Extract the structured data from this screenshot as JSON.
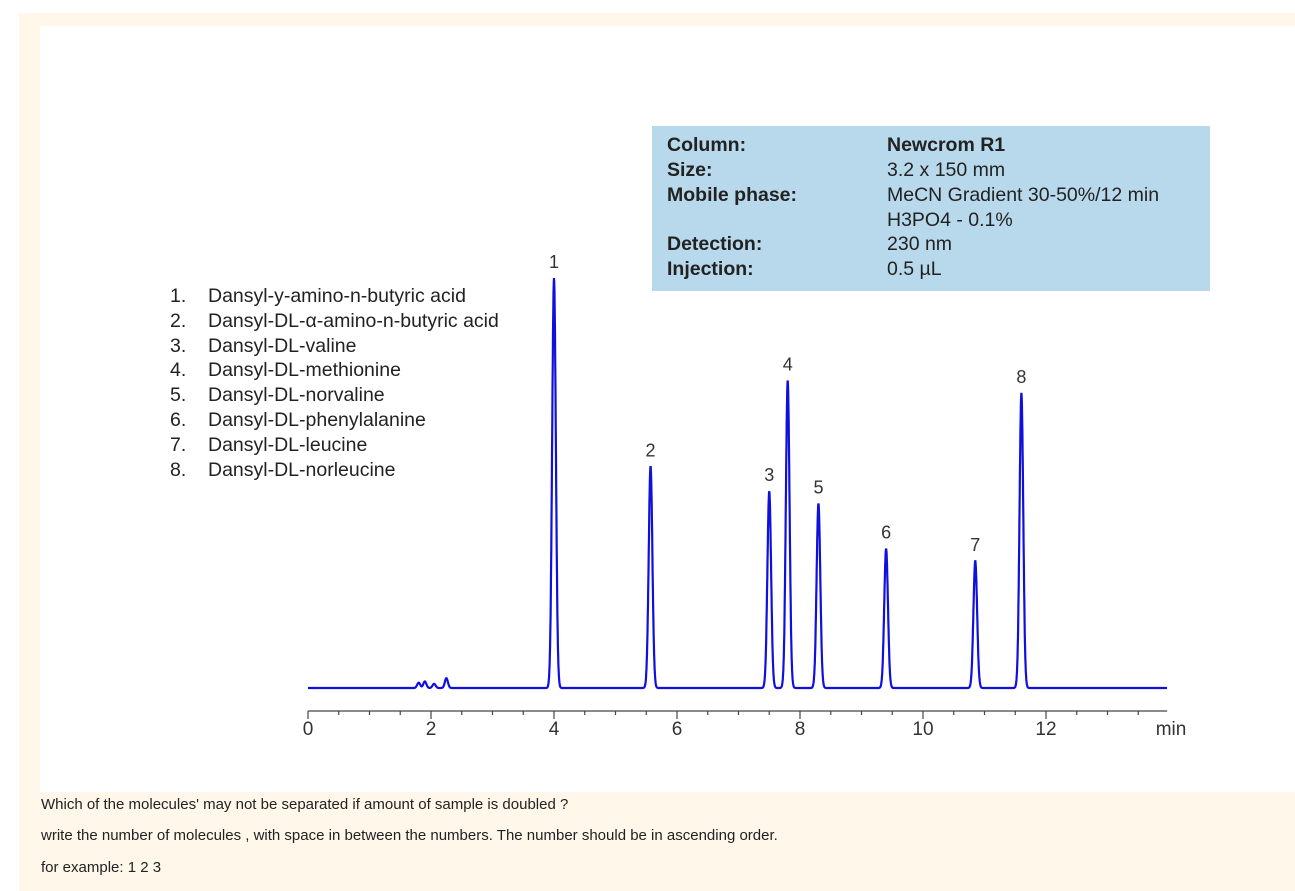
{
  "conditions": [
    {
      "label": "Column:",
      "value": "Newcrom R1"
    },
    {
      "label": "Size:",
      "value": "3.2 x 150 mm"
    },
    {
      "label": "Mobile phase:",
      "value": "MeCN  Gradient 30-50%/12 min"
    },
    {
      "label": "",
      "value": "H3PO4 -  0.1%"
    },
    {
      "label": "Detection:",
      "value": "230 nm"
    },
    {
      "label": "Injection:",
      "value": "0.5 µL"
    }
  ],
  "legend": [
    {
      "num": "1.",
      "name": "Dansyl-y-amino-n-butyric acid"
    },
    {
      "num": "2.",
      "name": "Dansyl-DL-α-amino-n-butyric acid"
    },
    {
      "num": "3.",
      "name": "Dansyl-DL-valine"
    },
    {
      "num": "4.",
      "name": "Dansyl-DL-methionine"
    },
    {
      "num": "5.",
      "name": "Dansyl-DL-norvaline"
    },
    {
      "num": "6.",
      "name": "Dansyl-DL-phenylalanine"
    },
    {
      "num": "7.",
      "name": "Dansyl-DL-leucine"
    },
    {
      "num": "8.",
      "name": "Dansyl-DL-norleucine"
    }
  ],
  "question": {
    "line1": "Which of the molecules' may not be separated  if amount of sample is doubled ?",
    "line2": "write the number of molecules , with space in between the numbers.  The number should be in ascending order.",
    "line3": "for example:  1 2 3"
  },
  "chart_data": {
    "type": "line",
    "xlabel": "min",
    "xlim": [
      0,
      14
    ],
    "ylim": [
      0,
      100
    ],
    "xticks": [
      0,
      2,
      4,
      6,
      8,
      10,
      12
    ],
    "line_color": "#1010dd",
    "peaks": [
      {
        "label": "1",
        "x": 4.0,
        "y": 100
      },
      {
        "label": "2",
        "x": 5.57,
        "y": 54
      },
      {
        "label": "3",
        "x": 7.5,
        "y": 48
      },
      {
        "label": "4",
        "x": 7.8,
        "y": 75
      },
      {
        "label": "5",
        "x": 8.3,
        "y": 45
      },
      {
        "label": "6",
        "x": 9.4,
        "y": 34
      },
      {
        "label": "7",
        "x": 10.85,
        "y": 31
      },
      {
        "label": "8",
        "x": 11.6,
        "y": 72
      }
    ]
  }
}
